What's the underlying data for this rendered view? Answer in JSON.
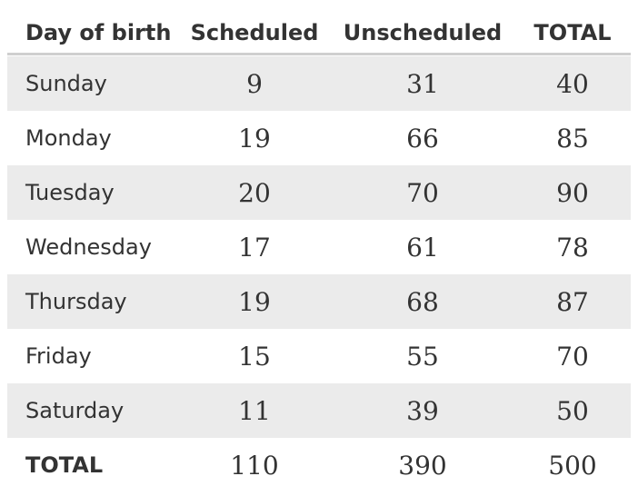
{
  "table": {
    "header": [
      "Day of birth",
      "Scheduled",
      "Unscheduled",
      "TOTAL"
    ],
    "rows": [
      [
        "Sunday",
        9,
        31,
        40
      ],
      [
        "Monday",
        19,
        66,
        85
      ],
      [
        "Tuesday",
        20,
        70,
        90
      ],
      [
        "Wednesday",
        17,
        61,
        78
      ],
      [
        "Thursday",
        19,
        68,
        87
      ],
      [
        "Friday",
        15,
        55,
        70
      ],
      [
        "Saturday",
        11,
        39,
        50
      ],
      [
        "TOTAL",
        110,
        390,
        500
      ]
    ]
  }
}
